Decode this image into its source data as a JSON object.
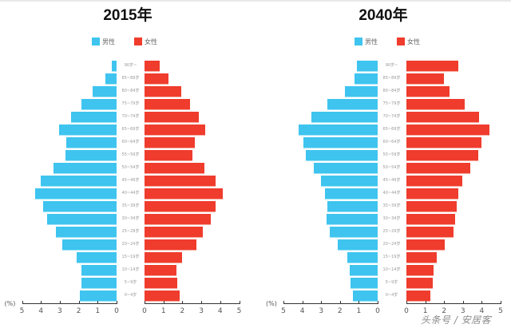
{
  "legend": {
    "male": "男性",
    "female": "女性"
  },
  "colors": {
    "male": "#3ec4ef",
    "female": "#ef3c2d"
  },
  "axis_unit": "(%)",
  "watermark": "头条号 / 安居客",
  "chart_data": [
    {
      "type": "bar",
      "subtype": "population-pyramid",
      "title": "2015年",
      "xlabel": "(%)",
      "xlim": [
        0,
        5
      ],
      "x_ticks_left": [
        5,
        4,
        3,
        2,
        1,
        0
      ],
      "x_ticks_right": [
        0,
        1,
        2,
        3,
        4,
        5
      ],
      "legend": [
        "男性",
        "女性"
      ],
      "legend_position": "top",
      "categories": [
        "90岁~",
        "85~89岁",
        "80~84岁",
        "75~79岁",
        "70~74岁",
        "65~69岁",
        "60~64岁",
        "55~59岁",
        "50~54岁",
        "45~49岁",
        "40~44岁",
        "35~39岁",
        "30~34岁",
        "25~29岁",
        "20~24岁",
        "15~19岁",
        "10~14岁",
        "5~9岁",
        "0~4岁"
      ],
      "series": [
        {
          "name": "男性",
          "values": [
            0.25,
            0.6,
            1.25,
            1.85,
            2.4,
            3.05,
            2.65,
            2.7,
            3.35,
            4.0,
            4.3,
            3.9,
            3.65,
            3.2,
            2.85,
            2.1,
            1.85,
            1.85,
            1.95
          ]
        },
        {
          "name": "女性",
          "values": [
            0.8,
            1.25,
            1.95,
            2.4,
            2.85,
            3.2,
            2.65,
            2.55,
            3.15,
            3.75,
            4.15,
            3.75,
            3.5,
            3.1,
            2.75,
            2.0,
            1.7,
            1.75,
            1.85
          ]
        }
      ]
    },
    {
      "type": "bar",
      "subtype": "population-pyramid",
      "title": "2040年",
      "xlabel": "(%)",
      "xlim": [
        0,
        5
      ],
      "x_ticks_left": [
        5,
        4,
        3,
        2,
        1,
        0
      ],
      "x_ticks_right": [
        0,
        1,
        2,
        3,
        4,
        5
      ],
      "legend": [
        "男性",
        "女性"
      ],
      "legend_position": "top",
      "categories": [
        "90岁~",
        "85~89岁",
        "80~84岁",
        "75~79岁",
        "70~74岁",
        "65~69岁",
        "60~64岁",
        "55~59岁",
        "50~54岁",
        "45~49岁",
        "40~44岁",
        "35~39岁",
        "30~34岁",
        "25~29岁",
        "20~24岁",
        "15~19岁",
        "10~14岁",
        "5~9岁",
        "0~4岁"
      ],
      "series": [
        {
          "name": "男性",
          "values": [
            1.1,
            1.25,
            1.75,
            2.65,
            3.5,
            4.2,
            3.95,
            3.8,
            3.4,
            3.0,
            2.8,
            2.65,
            2.7,
            2.55,
            2.1,
            1.6,
            1.5,
            1.45,
            1.3
          ]
        },
        {
          "name": "女性",
          "values": [
            2.75,
            2.0,
            2.3,
            3.1,
            3.85,
            4.4,
            4.0,
            3.8,
            3.4,
            2.95,
            2.75,
            2.65,
            2.6,
            2.5,
            2.05,
            1.6,
            1.45,
            1.4,
            1.25
          ]
        }
      ]
    }
  ]
}
